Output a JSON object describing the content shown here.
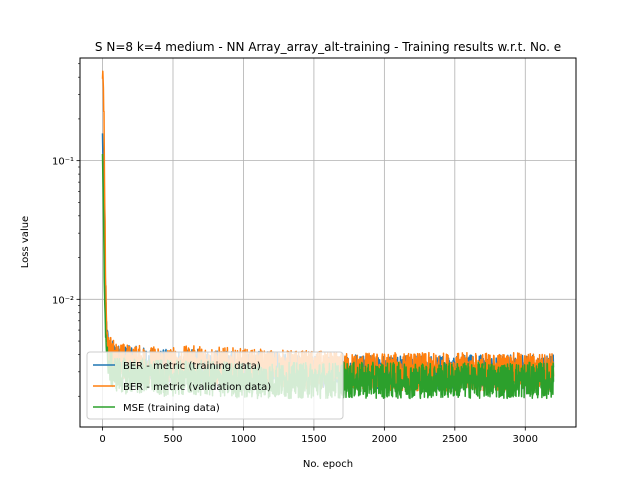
{
  "chart_data": {
    "type": "line",
    "title": "S N=8 k=4 medium - NN Array_array_alt-training - Training results w.r.t. No. e",
    "xlabel": "No. epoch",
    "ylabel": "Loss value",
    "xlim": [
      -160,
      3360
    ],
    "ylim": [
      0.0012,
      0.55
    ],
    "yscale": "log",
    "grid": true,
    "legend_position": "lower-left",
    "x_ticks": [
      0,
      500,
      1000,
      1500,
      2000,
      2500,
      3000
    ],
    "x_tick_labels": [
      "0",
      "500",
      "1000",
      "1500",
      "2000",
      "2500",
      "3000"
    ],
    "y_ticks": [
      0.01,
      0.1
    ],
    "y_tick_labels": [
      "10⁻²",
      "10⁻¹"
    ],
    "series": [
      {
        "name": "BER - metric (training data)",
        "color": "#1f77b4",
        "x": [
          0,
          5,
          10,
          15,
          20,
          25,
          30,
          40,
          50,
          75,
          100,
          150,
          200,
          300,
          400,
          500,
          700,
          1000,
          1500,
          1700,
          2000,
          2500,
          3000,
          3200
        ],
        "y": [
          0.15,
          0.09,
          0.04,
          0.02,
          0.012,
          0.008,
          0.006,
          0.0048,
          0.004,
          0.0038,
          0.0036,
          0.0035,
          0.0035,
          0.0034,
          0.0033,
          0.0033,
          0.0033,
          0.0032,
          0.0031,
          0.003,
          0.003,
          0.003,
          0.003,
          0.003
        ]
      },
      {
        "name": "BER - metric (validation data)",
        "color": "#ff7f0e",
        "x": [
          0,
          5,
          10,
          15,
          20,
          25,
          30,
          40,
          50,
          75,
          100,
          150,
          200,
          300,
          400,
          500,
          700,
          1000,
          1500,
          1700,
          2000,
          2500,
          3000,
          3200
        ],
        "y": [
          0.42,
          0.35,
          0.2,
          0.06,
          0.02,
          0.009,
          0.006,
          0.0045,
          0.004,
          0.0038,
          0.0036,
          0.0035,
          0.0034,
          0.0034,
          0.0033,
          0.0033,
          0.0034,
          0.0032,
          0.0031,
          0.003,
          0.003,
          0.003,
          0.003,
          0.003
        ]
      },
      {
        "name": "MSE (training data)",
        "color": "#2ca02c",
        "x": [
          0,
          5,
          10,
          15,
          20,
          25,
          30,
          40,
          50,
          75,
          100,
          150,
          200,
          300,
          400,
          500,
          700,
          1000,
          1500,
          1700,
          2000,
          2500,
          3000,
          3200
        ],
        "y": [
          0.1,
          0.05,
          0.02,
          0.01,
          0.007,
          0.005,
          0.0042,
          0.0036,
          0.0032,
          0.003,
          0.0029,
          0.0028,
          0.0028,
          0.0028,
          0.0027,
          0.0027,
          0.0027,
          0.0026,
          0.0026,
          0.0026,
          0.0026,
          0.0026,
          0.0026,
          0.0026
        ]
      }
    ]
  }
}
